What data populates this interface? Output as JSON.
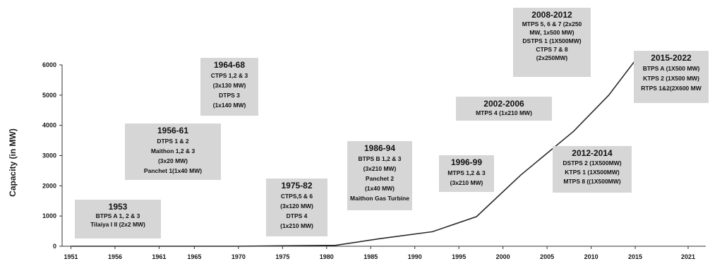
{
  "chart_data": {
    "type": "line",
    "xlabel": "",
    "ylabel": "Capacity (in MW)",
    "ylim": [
      0,
      6000
    ],
    "xlim": [
      1950,
      2023
    ],
    "y_ticks": [
      "0",
      "1000",
      "2000",
      "3000",
      "4000",
      "5000",
      "6000"
    ],
    "x_ticks": [
      {
        "year": 1951,
        "label": "1951"
      },
      {
        "year": 1956,
        "label": "1956"
      },
      {
        "year": 1961,
        "label": "1961"
      },
      {
        "year": 1965,
        "label": "1965"
      },
      {
        "year": 1970,
        "label": "1970"
      },
      {
        "year": 1975,
        "label": "1975"
      },
      {
        "year": 1980,
        "label": "1980"
      },
      {
        "year": 1985,
        "label": "1985"
      },
      {
        "year": 1990,
        "label": "1990"
      },
      {
        "year": 1995,
        "label": "1995"
      },
      {
        "year": 2000,
        "label": "2000"
      },
      {
        "year": 2005,
        "label": "2005"
      },
      {
        "year": 2010,
        "label": "2010"
      },
      {
        "year": 2015,
        "label": "2015"
      },
      {
        "year": 2021,
        "label": "2021"
      }
    ],
    "grid": false,
    "series": [
      {
        "name": "",
        "points": [
          {
            "x": 1951,
            "y": 0
          },
          {
            "x": 1970,
            "y": 0
          },
          {
            "x": 1981,
            "y": 30
          },
          {
            "x": 1986,
            "y": 250
          },
          {
            "x": 1992,
            "y": 480
          },
          {
            "x": 1997,
            "y": 980
          },
          {
            "x": 2002,
            "y": 2350
          },
          {
            "x": 2008,
            "y": 3800
          },
          {
            "x": 2012,
            "y": 5000
          },
          {
            "x": 2015,
            "y": 6150
          }
        ]
      }
    ],
    "annotations": [
      {
        "title": "1953",
        "lines": [
          "BTPS  A 1, 2 & 3",
          "Tilaiya I II (2x2 MW)"
        ]
      },
      {
        "title": "1956-61",
        "lines": [
          "DTPS 1 & 2",
          "Maithon 1,2 & 3",
          "(3x20 MW)",
          "Panchet 1(1x40 MW)"
        ]
      },
      {
        "title": "1964-68",
        "lines": [
          "CTPS 1,2 & 3",
          "(3x130 MW)",
          "DTPS 3",
          "(1x140 MW)"
        ]
      },
      {
        "title": "1975-82",
        "lines": [
          "CTPS,5 & 6",
          "(3x120 MW)",
          "DTPS 4",
          "(1x210 MW)"
        ]
      },
      {
        "title": "1986-94",
        "lines": [
          "BTPS B 1,2 & 3",
          "(3x210  MW)",
          "Panchet 2",
          "(1x40 MW)",
          "Maithon Gas Turbine"
        ]
      },
      {
        "title": "1996-99",
        "lines": [
          "MTPS 1,2 & 3",
          "(3x210 MW)"
        ]
      },
      {
        "title": "2002-2006",
        "lines": [
          "MTPS 4 (1x210 MW)"
        ]
      },
      {
        "title": "2008-2012",
        "lines": [
          "MTPS  5, 6 & 7 (2x250",
          "MW, 1x500 MW)",
          "DSTPS 1 (1X500MW)",
          "CTPS 7 & 8",
          "(2x250MW)"
        ]
      },
      {
        "title": "2012-2014",
        "lines": [
          "DSTPS 2 (1X500MW)",
          "KTPS 1  (1X500MW)",
          "MTPS 8 ((1X500MW)"
        ]
      },
      {
        "title": "2015-2022",
        "lines": [
          "BTPS A (1X500 MW)",
          "KTPS 2 (1X500 MW)",
          "RTPS 1&2(2X600 MW"
        ]
      }
    ],
    "colors": {
      "line": "#2a2a2a",
      "axis": "#333333",
      "box_fill": "#d6d6d6",
      "background": "#ffffff"
    }
  }
}
